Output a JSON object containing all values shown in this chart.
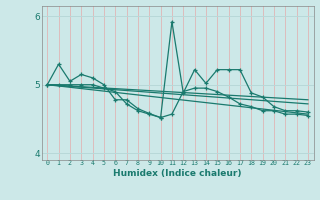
{
  "xlabel": "Humidex (Indice chaleur)",
  "background_color": "#cce8e8",
  "grid_color_v": "#ddbcbc",
  "grid_color_h": "#b8d8d8",
  "line_color": "#1a7a6e",
  "xlim": [
    -0.5,
    23.5
  ],
  "ylim": [
    3.9,
    6.15
  ],
  "yticks": [
    4,
    5,
    6
  ],
  "xtick_labels": [
    "0",
    "1",
    "2",
    "3",
    "4",
    "5",
    "6",
    "7",
    "8",
    "9",
    "10",
    "11",
    "12",
    "13",
    "14",
    "15",
    "16",
    "17",
    "18",
    "19",
    "20",
    "21",
    "22",
    "23"
  ],
  "series1_x": [
    0,
    1,
    2,
    3,
    4,
    5,
    6,
    7,
    8,
    9,
    10,
    11,
    12,
    13,
    14,
    15,
    16,
    17,
    18,
    19,
    20,
    21,
    22,
    23
  ],
  "series1_y": [
    5.0,
    5.3,
    5.05,
    5.15,
    5.1,
    5.0,
    4.78,
    4.78,
    4.65,
    4.58,
    4.52,
    5.92,
    4.88,
    5.22,
    5.02,
    5.22,
    5.22,
    5.22,
    4.88,
    4.82,
    4.68,
    4.62,
    4.62,
    4.6
  ],
  "series2_x": [
    0,
    1,
    2,
    3,
    4,
    5,
    6,
    7,
    8,
    9,
    10,
    11,
    12,
    13,
    14,
    15,
    16,
    17,
    18,
    19,
    20,
    21,
    22,
    23
  ],
  "series2_y": [
    5.0,
    5.0,
    5.0,
    5.0,
    5.0,
    4.95,
    4.9,
    4.72,
    4.62,
    4.57,
    4.52,
    4.57,
    4.9,
    4.95,
    4.95,
    4.9,
    4.82,
    4.72,
    4.68,
    4.62,
    4.62,
    4.57,
    4.57,
    4.55
  ],
  "trend_lines": [
    [
      [
        0,
        5.0
      ],
      [
        23,
        4.72
      ]
    ],
    [
      [
        0,
        5.0
      ],
      [
        23,
        4.78
      ]
    ],
    [
      [
        0,
        5.0
      ],
      [
        23,
        4.57
      ]
    ]
  ]
}
